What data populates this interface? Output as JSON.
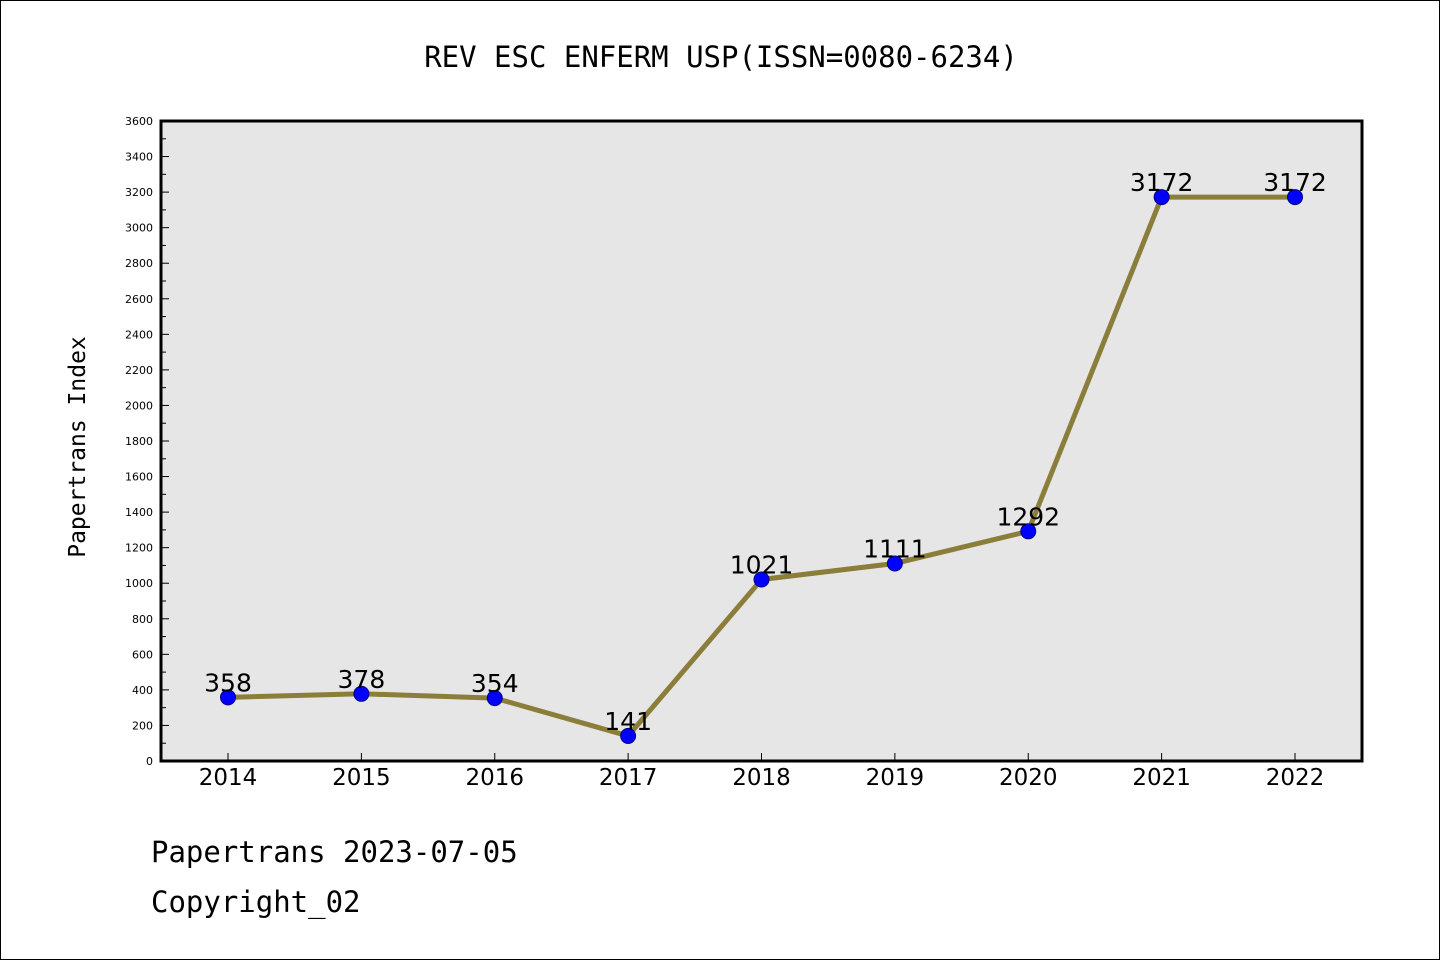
{
  "chart_data": {
    "type": "line",
    "title": "REV ESC ENFERM USP(ISSN=0080-6234)",
    "xlabel": "",
    "ylabel": "Papertrans Index",
    "categories": [
      "2014",
      "2015",
      "2016",
      "2017",
      "2018",
      "2019",
      "2020",
      "2021",
      "2022"
    ],
    "series": [
      {
        "values": [
          358,
          378,
          354,
          141,
          1021,
          1111,
          1292,
          3172,
          3172
        ]
      }
    ],
    "ylim": [
      0,
      3600
    ],
    "yticks": [
      0,
      200,
      400,
      600,
      800,
      1000,
      1200,
      1400,
      1600,
      1800,
      2000,
      2200,
      2400,
      2600,
      2800,
      3000,
      3200,
      3400,
      3600
    ],
    "grid": false,
    "legend": "none",
    "data_labels": true,
    "colors": {
      "line": "#8b7d3a",
      "marker_fill": "#0000ff",
      "marker_edge": "#000080",
      "plot_background": "#e6e6e6"
    }
  },
  "footer": {
    "line1": "Papertrans 2023-07-05",
    "line2": "Copyright_02"
  }
}
